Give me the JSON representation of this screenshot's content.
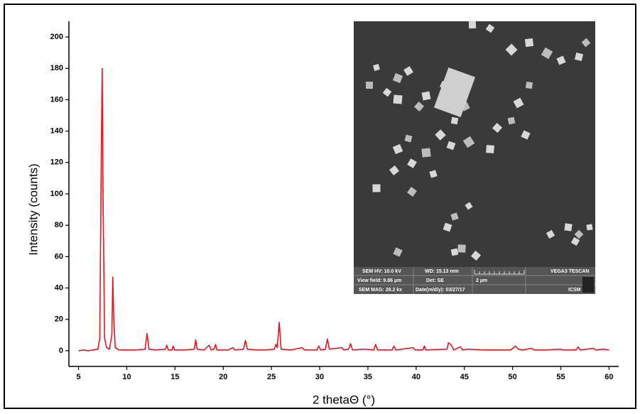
{
  "chart_data": {
    "type": "line",
    "x_label": "2 thetaΘ (°)",
    "y_label": "Intensity (counts)",
    "color": "#e8141e",
    "x": [
      5.0,
      5.5,
      6.0,
      6.5,
      7.0,
      7.2,
      7.35,
      7.45,
      7.55,
      7.7,
      7.9,
      8.2,
      8.45,
      8.55,
      8.65,
      8.8,
      9.2,
      10.0,
      11.0,
      11.9,
      12.1,
      12.3,
      13.0,
      14.0,
      14.15,
      14.3,
      14.7,
      14.8,
      14.95,
      16.0,
      17.0,
      17.15,
      17.3,
      18.0,
      18.55,
      18.75,
      19.05,
      19.2,
      19.35,
      20.5,
      21.0,
      21.2,
      22.1,
      22.3,
      22.5,
      23.5,
      24.3,
      25.3,
      25.45,
      25.6,
      25.8,
      26.0,
      27.0,
      28.2,
      28.4,
      29.7,
      29.9,
      30.1,
      30.6,
      30.8,
      31.0,
      32.3,
      32.5,
      33.0,
      33.2,
      33.4,
      34.6,
      35.6,
      35.8,
      36.0,
      37.5,
      37.7,
      37.9,
      39.7,
      39.9,
      40.7,
      40.85,
      41.0,
      43.2,
      43.35,
      43.5,
      43.7,
      43.9,
      44.6,
      44.8,
      45.3,
      47.0,
      48.5,
      49.8,
      50.3,
      50.6,
      51.0,
      52.0,
      52.2,
      53.5,
      55.0,
      55.2,
      56.6,
      56.8,
      57.0,
      58.4,
      58.6,
      59.4,
      60.0
    ],
    "values": [
      0,
      0.5,
      0,
      0.5,
      1,
      8,
      120,
      180,
      90,
      8,
      2,
      1,
      10,
      47,
      20,
      2,
      0.5,
      0.5,
      0.5,
      1,
      11,
      1,
      0.5,
      1,
      3.5,
      0.5,
      0.5,
      3,
      0.5,
      0.5,
      1,
      7,
      1,
      0.5,
      3.5,
      0.5,
      1,
      4,
      0.5,
      0.5,
      2,
      0.5,
      1,
      6.5,
      1,
      0.5,
      0.5,
      1,
      4,
      2,
      18,
      1,
      0.5,
      2,
      0.5,
      0.5,
      3,
      0.5,
      1,
      7.5,
      1,
      2,
      0.5,
      1,
      4.5,
      0.5,
      1,
      0.5,
      4,
      0.5,
      0.5,
      3,
      0.5,
      2,
      0.5,
      0.5,
      3,
      0.5,
      1,
      5,
      4.5,
      3,
      0.5,
      2.5,
      0.5,
      1,
      0.5,
      0.5,
      0.5,
      3,
      1,
      0.5,
      1.5,
      0.5,
      0.5,
      1,
      0.5,
      0.5,
      2.5,
      0.5,
      1.5,
      0.5,
      1,
      0.5
    ],
    "xlim": [
      4,
      61
    ],
    "ylim": [
      -10,
      210
    ],
    "xticks": [
      5,
      10,
      15,
      20,
      25,
      30,
      35,
      40,
      45,
      50,
      55,
      60
    ],
    "yticks": [
      0,
      20,
      40,
      60,
      80,
      100,
      120,
      140,
      160,
      180,
      200
    ],
    "inset_labels": [
      "SEM HV: 10.0 kV",
      "WD: 15.13 mm",
      "VEGA3 TESCAN",
      "View field: 9.86 µm",
      "Det: SE",
      "2 µm",
      "SEM MAG: 28.2 kx",
      "Date(m/d/y): 03/27/17",
      "ICSM"
    ]
  }
}
